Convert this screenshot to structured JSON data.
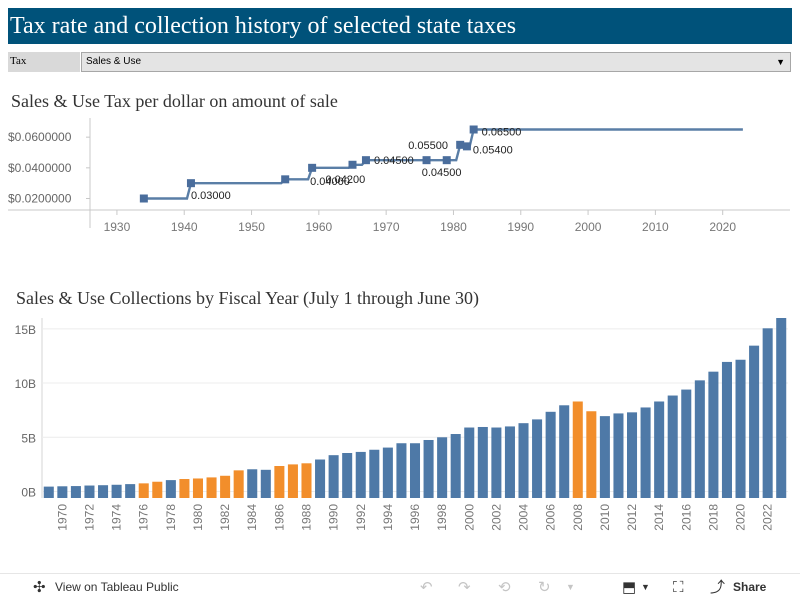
{
  "header": {
    "title": "Tax rate and collection history of selected state taxes"
  },
  "filter": {
    "label": "Tax",
    "value": "Sales & Use"
  },
  "rate_chart_title": "Sales & Use Tax per dollar on amount of sale",
  "collections_chart_title": "Sales & Use Collections by Fiscal Year (July 1 through June 30)",
  "toolbar": {
    "view_label": "View on Tableau Public",
    "share_label": "Share"
  },
  "colors": {
    "primary": "#4e79a7",
    "highlight": "#f28e2b",
    "banner": "#00527a"
  },
  "chart_data": [
    {
      "type": "line",
      "title": "Sales & Use Tax per dollar on amount of sale",
      "xlabel": "",
      "ylabel": "",
      "xlim": [
        1926,
        2030
      ],
      "ylim": [
        0.0125,
        0.0725
      ],
      "xticks": [
        1930,
        1940,
        1950,
        1960,
        1970,
        1980,
        1990,
        2000,
        2010,
        2020
      ],
      "yticks": [
        {
          "value": 0.02,
          "label": "$0.0200000"
        },
        {
          "value": 0.04,
          "label": "$0.0400000"
        },
        {
          "value": 0.06,
          "label": "$0.0600000"
        }
      ],
      "end_year": 2023,
      "steps": [
        {
          "year": 1934,
          "rate": 0.02,
          "label": ""
        },
        {
          "year": 1941,
          "rate": 0.03,
          "label": "0.03000"
        },
        {
          "year": 1955,
          "rate": 0.0325,
          "label": ""
        },
        {
          "year": 1959,
          "rate": 0.04,
          "label": "0.04000"
        },
        {
          "year": 1965,
          "rate": 0.042,
          "label": "0.04200"
        },
        {
          "year": 1967,
          "rate": 0.045,
          "label": "0.04500"
        },
        {
          "year": 1976,
          "rate": 0.045,
          "label": ""
        },
        {
          "year": 1979,
          "rate": 0.045,
          "label": "0.04500"
        },
        {
          "year": 1981,
          "rate": 0.055,
          "label": "0.05500"
        },
        {
          "year": 1982,
          "rate": 0.054,
          "label": "0.05400"
        },
        {
          "year": 1983,
          "rate": 0.065,
          "label": "0.06500"
        }
      ]
    },
    {
      "type": "bar",
      "title": "Sales & Use Collections by Fiscal Year (July 1 through June 30)",
      "xlabel": "",
      "ylabel": "",
      "ylim": [
        -0.6,
        16
      ],
      "yticks": [
        {
          "value": 0,
          "label": "0B"
        },
        {
          "value": 5,
          "label": "5B"
        },
        {
          "value": 10,
          "label": "10B"
        },
        {
          "value": 15,
          "label": "15B"
        }
      ],
      "units": "billions of dollars",
      "categories": [
        1969,
        1970,
        1971,
        1972,
        1973,
        1974,
        1975,
        1976,
        1977,
        1978,
        1979,
        1980,
        1981,
        1982,
        1983,
        1984,
        1985,
        1986,
        1987,
        1988,
        1989,
        1990,
        1991,
        1992,
        1993,
        1994,
        1995,
        1996,
        1997,
        1998,
        1999,
        2000,
        2001,
        2002,
        2003,
        2004,
        2005,
        2006,
        2007,
        2008,
        2009,
        2010,
        2011,
        2012,
        2013,
        2014,
        2015,
        2016,
        2017,
        2018,
        2019,
        2020,
        2021,
        2022,
        2023
      ],
      "tick_labels": [
        "1970",
        "1972",
        "1974",
        "1976",
        "1978",
        "1980",
        "1982",
        "1984",
        "1986",
        "1988",
        "1990",
        "1992",
        "1994",
        "1996",
        "1998",
        "2000",
        "2002",
        "2004",
        "2006",
        "2008",
        "2010",
        "2012",
        "2014",
        "2016",
        "2018",
        "2020",
        "2022"
      ],
      "values": [
        0.45,
        0.48,
        0.5,
        0.55,
        0.58,
        0.62,
        0.68,
        0.75,
        0.9,
        1.05,
        1.15,
        1.2,
        1.3,
        1.45,
        1.95,
        2.05,
        2.0,
        2.35,
        2.5,
        2.6,
        2.95,
        3.35,
        3.55,
        3.65,
        3.85,
        4.05,
        4.45,
        4.45,
        4.75,
        5.0,
        5.3,
        5.9,
        5.95,
        5.9,
        6.0,
        6.3,
        6.65,
        7.35,
        7.95,
        8.3,
        7.4,
        6.95,
        7.2,
        7.3,
        7.75,
        8.3,
        8.85,
        9.4,
        10.25,
        11.05,
        11.95,
        12.15,
        13.45,
        15.05,
        16.0
      ],
      "highlighted": [
        1976,
        1977,
        1979,
        1980,
        1981,
        1982,
        1983,
        1986,
        1987,
        1988,
        2008,
        2009
      ]
    }
  ]
}
